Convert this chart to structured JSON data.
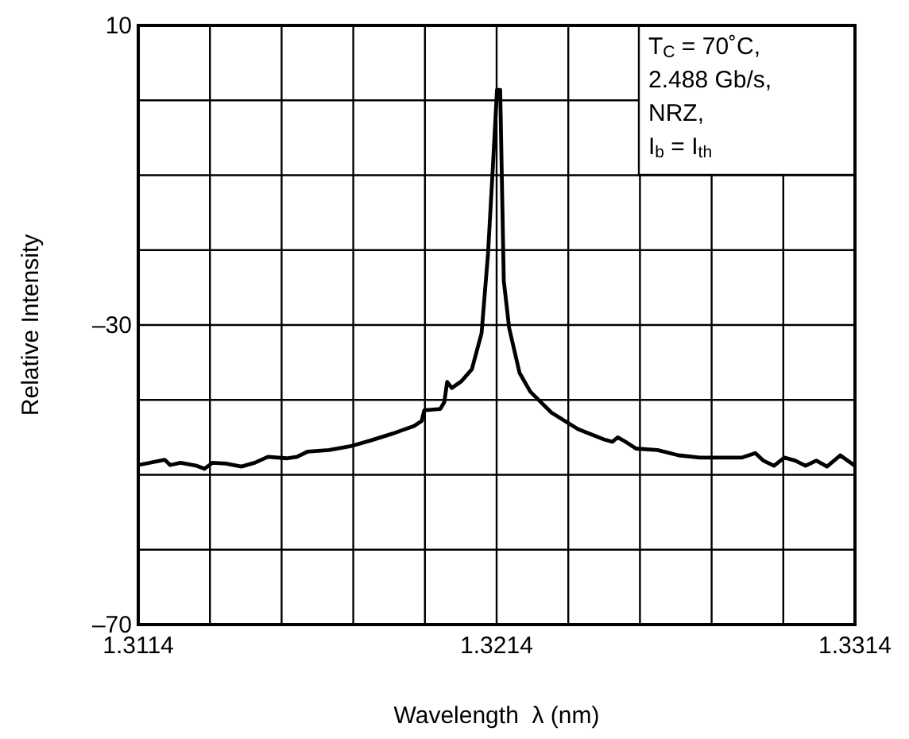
{
  "chart_data": {
    "type": "line",
    "xlabel": "Wavelength  λ (nm)",
    "ylabel": "Relative Intensity",
    "xlim": [
      1.3114,
      1.3314
    ],
    "ylim": [
      -70,
      10
    ],
    "xticks": [
      1.3114,
      {
        "value": 1.3134,
        "label": null
      },
      {
        "value": 1.3154,
        "label": null
      },
      {
        "value": 1.3174,
        "label": null
      },
      {
        "value": 1.3194,
        "label": null
      },
      1.3214,
      {
        "value": 1.3234,
        "label": null
      },
      {
        "value": 1.3254,
        "label": null
      },
      {
        "value": 1.3274,
        "label": null
      },
      {
        "value": 1.3294,
        "label": null
      },
      1.3314
    ],
    "yticks": [
      {
        "value": -70,
        "label": "–70"
      },
      {
        "value": -60,
        "label": null
      },
      {
        "value": -50,
        "label": null
      },
      {
        "value": -40,
        "label": null
      },
      {
        "value": -30,
        "label": "–30"
      },
      {
        "value": -20,
        "label": null
      },
      {
        "value": -10,
        "label": null
      },
      {
        "value": 0,
        "label": null
      },
      10
    ],
    "grid": true,
    "marker": "none",
    "line_style": "solid",
    "annotations": [
      "T$_{C}$ = 70˚C,",
      "2.488 Gb/s,",
      "NRZ,",
      "I$_{b}$ = I$_{th}$"
    ],
    "series": [
      {
        "color": "#000000",
        "x": [
          1.3114,
          1.31214,
          1.31229,
          1.31258,
          1.31303,
          1.31325,
          1.31347,
          1.31384,
          1.31428,
          1.31465,
          1.31502,
          1.31554,
          1.31583,
          1.31613,
          1.31672,
          1.31731,
          1.3179,
          1.3185,
          1.31909,
          1.31931,
          1.31938,
          1.31983,
          1.31994,
          1.32002,
          1.32015,
          1.32042,
          1.32071,
          1.32098,
          1.32116,
          1.3213,
          1.32141,
          1.3215,
          1.3216,
          1.32175,
          1.32204,
          1.32234,
          1.32293,
          1.32367,
          1.32441,
          1.32463,
          1.32478,
          1.325,
          1.32529,
          1.32589,
          1.32648,
          1.32707,
          1.32825,
          1.32862,
          1.32884,
          1.32914,
          1.32943,
          1.32973,
          1.33002,
          1.33032,
          1.33062,
          1.33099,
          1.3314
        ],
        "values": [
          -48.7,
          -48.0,
          -48.7,
          -48.4,
          -48.8,
          -49.2,
          -48.4,
          -48.5,
          -48.9,
          -48.4,
          -47.6,
          -47.8,
          -47.6,
          -46.9,
          -46.7,
          -46.2,
          -45.4,
          -44.5,
          -43.5,
          -42.8,
          -41.4,
          -41.2,
          -40.3,
          -37.6,
          -38.4,
          -37.5,
          -35.9,
          -31.1,
          -20.5,
          -8.5,
          1.4,
          1.4,
          -24.1,
          -30.4,
          -36.4,
          -38.9,
          -41.7,
          -43.9,
          -45.3,
          -45.6,
          -45.0,
          -45.6,
          -46.5,
          -46.7,
          -47.4,
          -47.7,
          -47.7,
          -47.1,
          -48.1,
          -48.8,
          -47.7,
          -48.1,
          -48.8,
          -48.1,
          -48.9,
          -47.4,
          -48.8
        ]
      }
    ]
  }
}
